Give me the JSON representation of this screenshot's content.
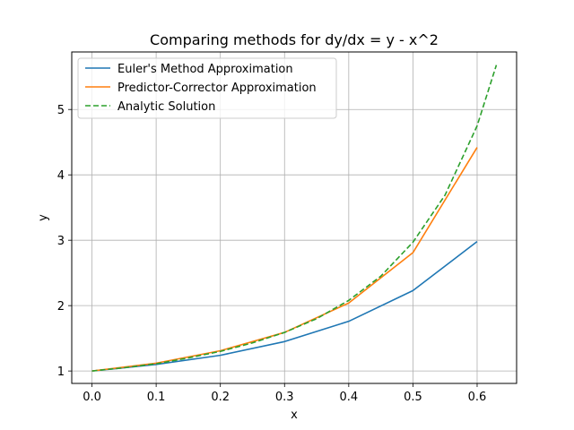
{
  "chart_data": {
    "type": "line",
    "title": "Comparing methods for dy/dx = y - x^2",
    "xlabel": "x",
    "ylabel": "y",
    "xlim": [
      -0.0315,
      0.6615
    ],
    "ylim": [
      0.81,
      5.88
    ],
    "x_ticks": [
      0.0,
      0.1,
      0.2,
      0.3,
      0.4,
      0.5,
      0.6
    ],
    "x_tick_labels": [
      "0.0",
      "0.1",
      "0.2",
      "0.3",
      "0.4",
      "0.5",
      "0.6"
    ],
    "y_ticks": [
      1,
      2,
      3,
      4,
      5
    ],
    "y_tick_labels": [
      "1",
      "2",
      "3",
      "4",
      "5"
    ],
    "grid": true,
    "legend_position": "top-left",
    "series": [
      {
        "name": "Euler's Method Approximation",
        "color": "#1f77b4",
        "dash": "solid",
        "x": [
          0.0,
          0.1,
          0.2,
          0.3,
          0.4,
          0.5,
          0.6
        ],
        "y": [
          1.0,
          1.1,
          1.24,
          1.45,
          1.76,
          2.23,
          2.98
        ]
      },
      {
        "name": "Predictor-Corrector Approximation",
        "color": "#ff7f0e",
        "dash": "solid",
        "x": [
          0.0,
          0.1,
          0.2,
          0.3,
          0.4,
          0.5,
          0.6
        ],
        "y": [
          1.0,
          1.12,
          1.31,
          1.59,
          2.04,
          2.81,
          4.42
        ]
      },
      {
        "name": "Analytic Solution",
        "color": "#2ca02c",
        "dash": "dashed",
        "x": [
          0.0,
          0.05,
          0.1,
          0.15,
          0.2,
          0.25,
          0.3,
          0.35,
          0.4,
          0.45,
          0.5,
          0.55,
          0.6,
          0.63
        ],
        "y": [
          1.0,
          1.05,
          1.11,
          1.2,
          1.3,
          1.43,
          1.59,
          1.8,
          2.08,
          2.45,
          2.97,
          3.69,
          4.75,
          5.68
        ]
      }
    ]
  }
}
